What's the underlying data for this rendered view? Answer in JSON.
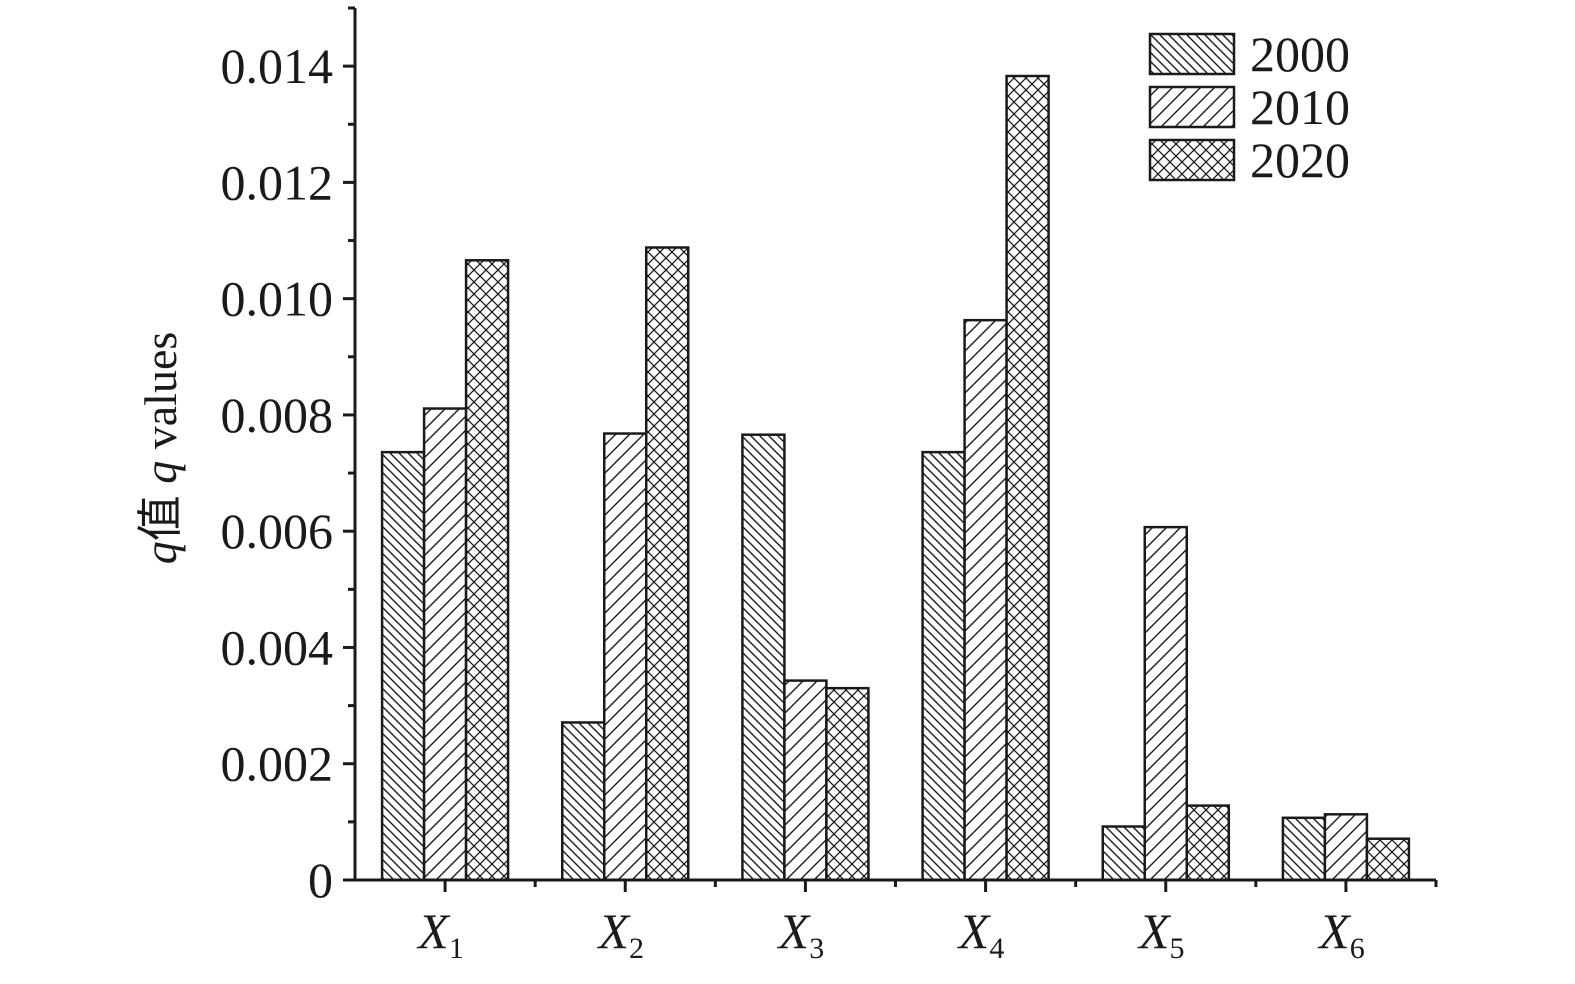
{
  "chart_data": {
    "type": "bar",
    "categories": [
      {
        "main": "X",
        "sub": "1"
      },
      {
        "main": "X",
        "sub": "2"
      },
      {
        "main": "X",
        "sub": "3"
      },
      {
        "main": "X",
        "sub": "4"
      },
      {
        "main": "X",
        "sub": "5"
      },
      {
        "main": "X",
        "sub": "6"
      }
    ],
    "series": [
      {
        "name": "2000",
        "pattern": "hatch-back",
        "values": [
          0.00736,
          0.00271,
          0.00766,
          0.00736,
          0.00092,
          0.00107
        ]
      },
      {
        "name": "2010",
        "pattern": "hatch-forward",
        "values": [
          0.00811,
          0.00768,
          0.00343,
          0.00963,
          0.00607,
          0.00113
        ]
      },
      {
        "name": "2020",
        "pattern": "crosshatch",
        "values": [
          0.01066,
          0.01088,
          0.0033,
          0.01383,
          0.00128,
          0.00071
        ]
      }
    ],
    "ylabel": {
      "prefix": "q",
      "cjk": "值 ",
      "var": "q",
      "suffix": " values"
    },
    "ylim": [
      0,
      0.015
    ],
    "yticks": [
      {
        "value": 0,
        "label": "0"
      },
      {
        "value": 0.002,
        "label": "0.002"
      },
      {
        "value": 0.004,
        "label": "0.004"
      },
      {
        "value": 0.006,
        "label": "0.006"
      },
      {
        "value": 0.008,
        "label": "0.008"
      },
      {
        "value": 0.01,
        "label": "0.010"
      },
      {
        "value": 0.012,
        "label": "0.012"
      },
      {
        "value": 0.014,
        "label": "0.014"
      }
    ],
    "grid": false,
    "legend_position": "top-right",
    "colors": {
      "stroke": "#1a1a1a",
      "fill": "#ffffff"
    }
  }
}
